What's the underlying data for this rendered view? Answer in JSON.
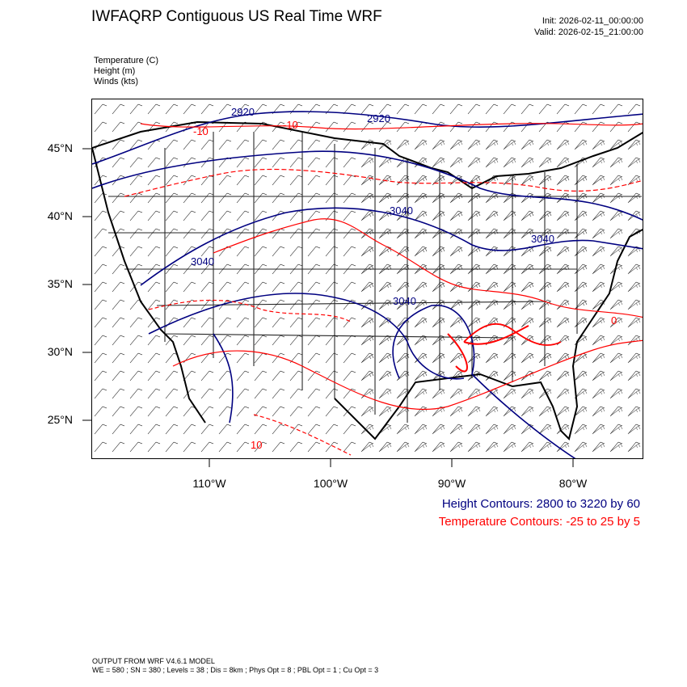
{
  "header": {
    "title": "IWFAQRP Contiguous US Real Time WRF",
    "init": "Init: 2026-02-11_00:00:00",
    "valid": "Valid: 2026-02-15_21:00:00"
  },
  "fields": [
    {
      "label": "Temperature   (C)"
    },
    {
      "label": "Height   (m)"
    },
    {
      "label": "Winds   (kts)"
    }
  ],
  "map": {
    "lat_labels": [
      "45°N",
      "40°N",
      "35°N",
      "30°N",
      "25°N"
    ],
    "lon_labels": [
      "110°W",
      "100°W",
      "90°W",
      "80°W"
    ],
    "height_contour_labels": [
      "2920",
      "2920",
      "3040",
      "3040",
      "3040",
      "3040"
    ],
    "temperature_contour_labels": [
      "-10",
      "-10",
      "0",
      "10"
    ],
    "colors": {
      "height": "#000080",
      "temperature": "#ff0000",
      "boundaries": "#000000"
    }
  },
  "legend": {
    "height": "Height Contours: 2800 to 3220 by 60",
    "temperature": "Temperature Contours: -25 to 25 by 5"
  },
  "footer": {
    "line1": "OUTPUT FROM WRF V4.6.1 MODEL",
    "line2": "WE = 580 ; SN = 380 ; Levels = 38 ; Dis = 8km ; Phys Opt = 8 ; PBL Opt = 1 ; Cu Opt = 3"
  }
}
